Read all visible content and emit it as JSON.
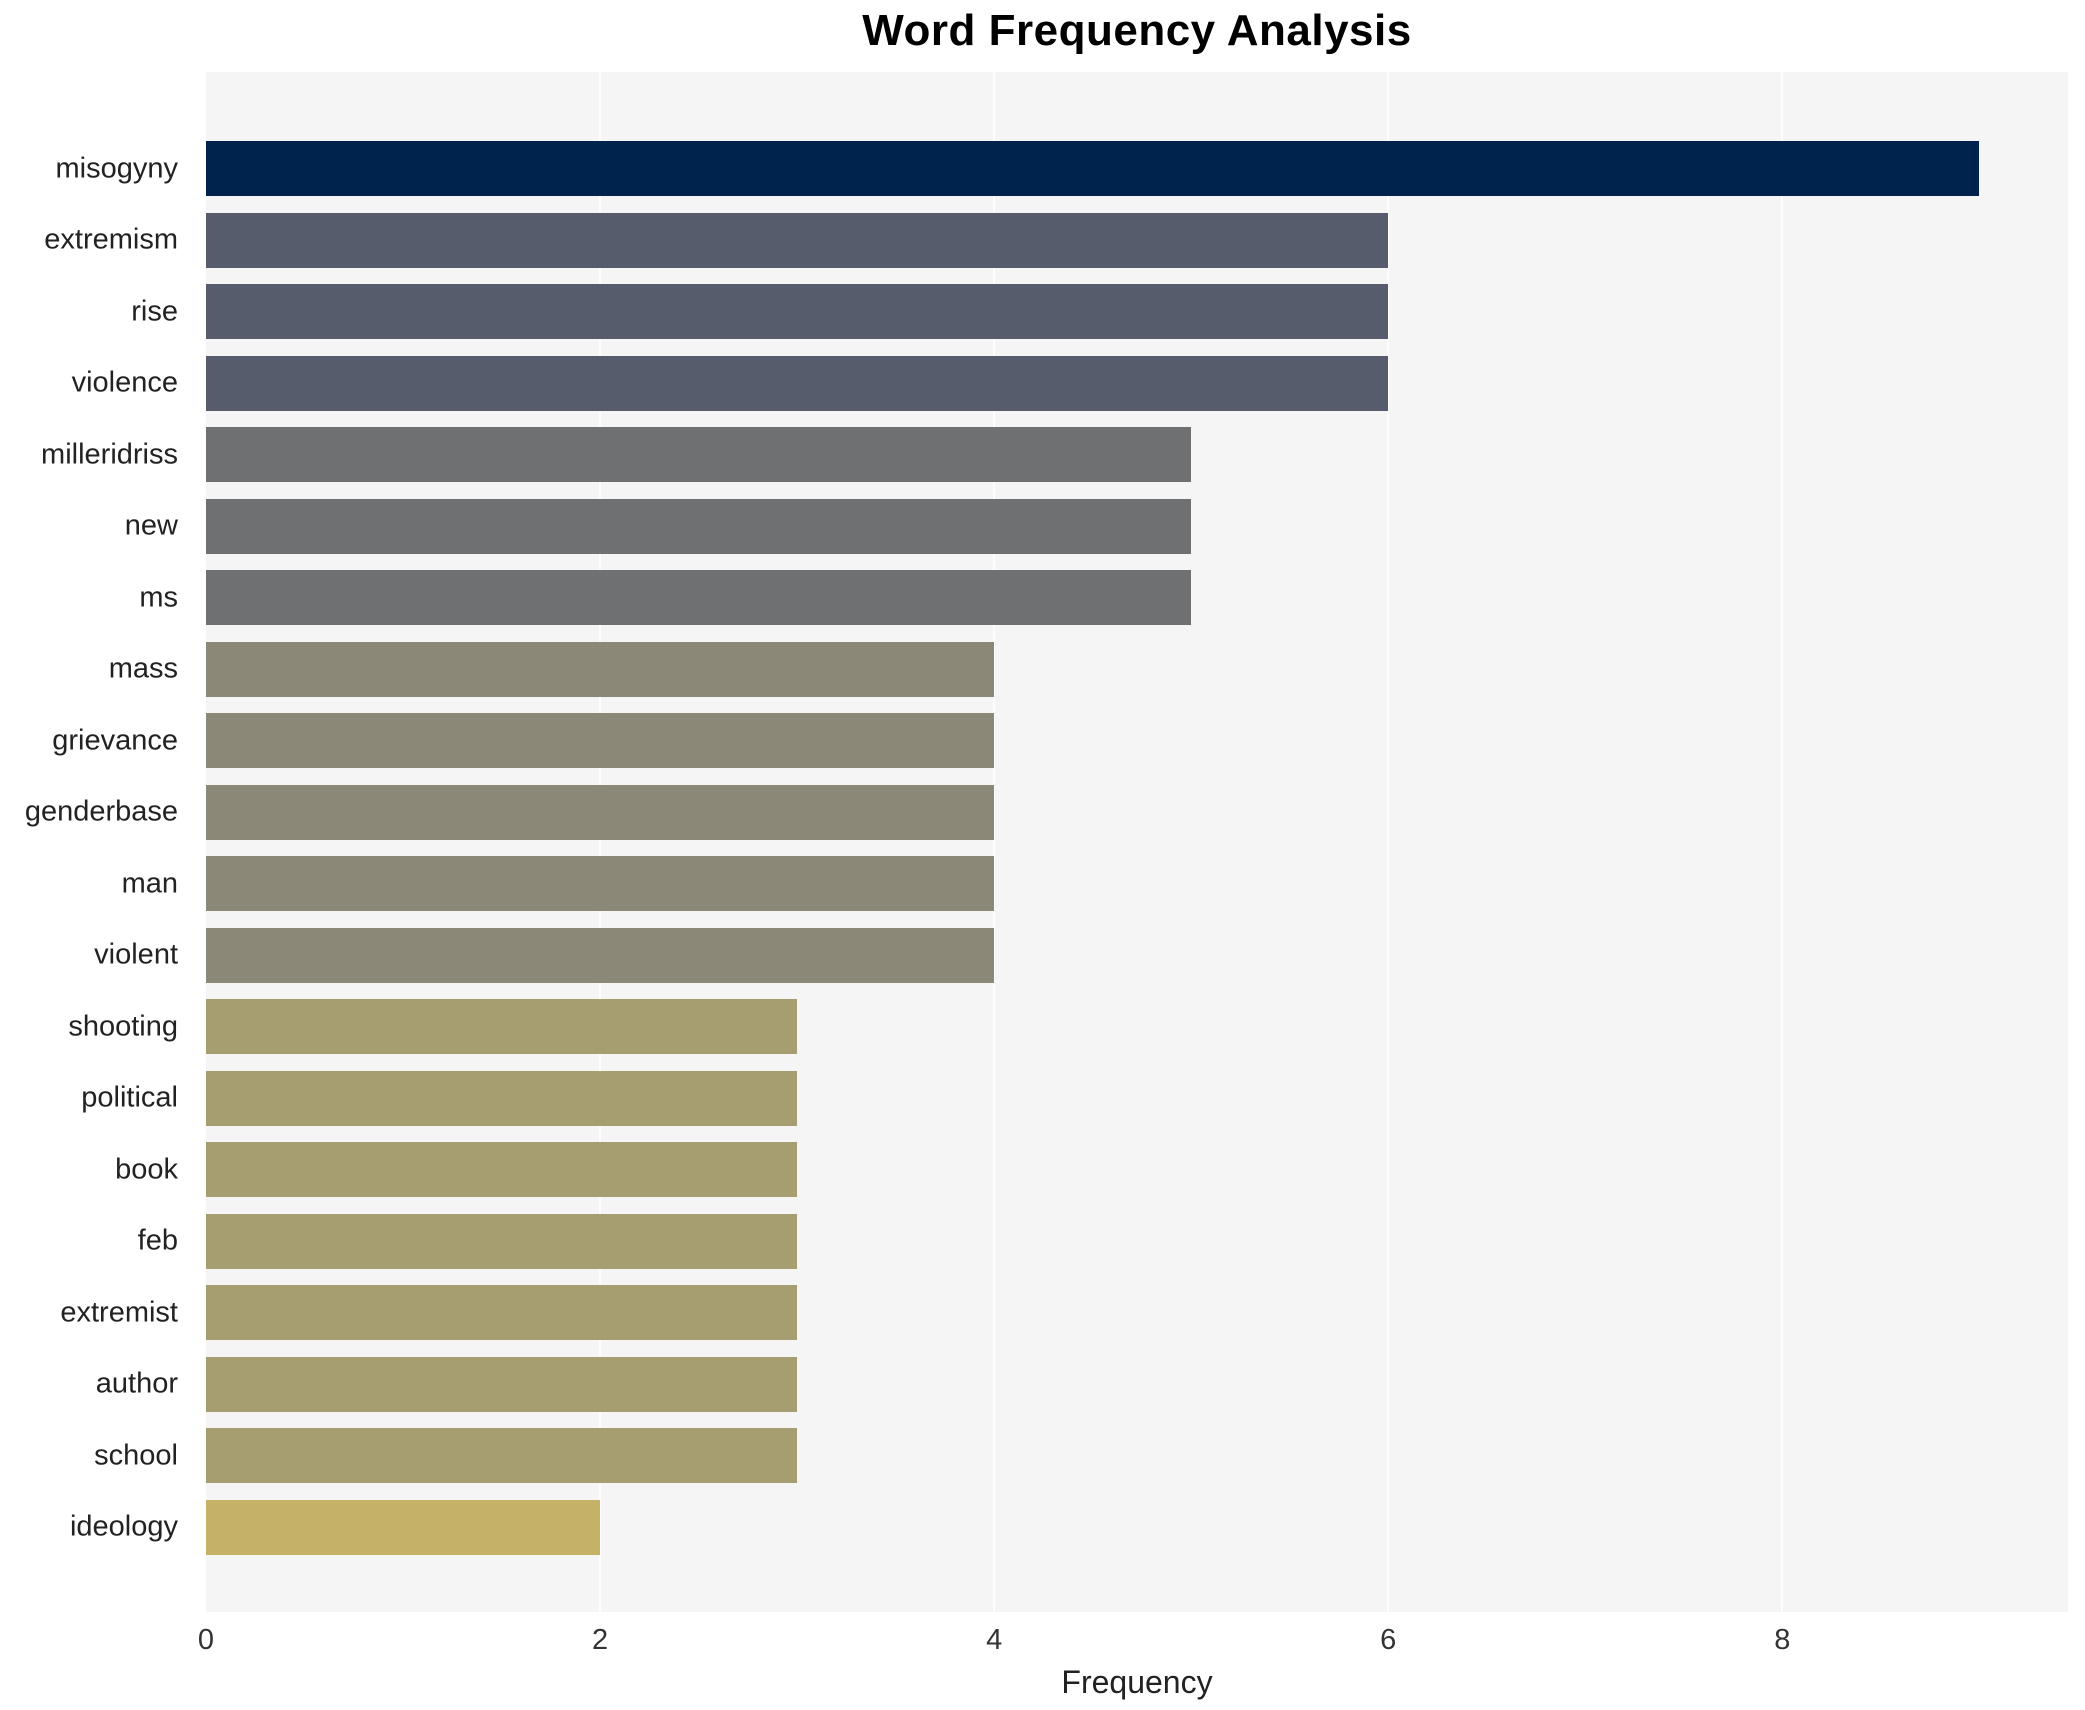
{
  "title": "Word Frequency Analysis",
  "chart_data": {
    "type": "bar",
    "orientation": "horizontal",
    "title": "Word Frequency Analysis",
    "xlabel": "Frequency",
    "ylabel": "",
    "categories": [
      "misogyny",
      "extremism",
      "rise",
      "violence",
      "milleridriss",
      "new",
      "ms",
      "mass",
      "grievance",
      "genderbase",
      "man",
      "violent",
      "shooting",
      "political",
      "book",
      "feb",
      "extremist",
      "author",
      "school",
      "ideology"
    ],
    "values": [
      9,
      6,
      6,
      6,
      5,
      5,
      5,
      4,
      4,
      4,
      4,
      4,
      3,
      3,
      3,
      3,
      3,
      3,
      3,
      2
    ],
    "bar_colors": [
      "#00234e",
      "#575c6d",
      "#575c6d",
      "#575c6d",
      "#6f7072",
      "#6f7072",
      "#6f7072",
      "#8b8878",
      "#8b8878",
      "#8b8878",
      "#8b8878",
      "#8b8878",
      "#a69e71",
      "#a69e71",
      "#a69e71",
      "#a69e71",
      "#a69e71",
      "#a69e71",
      "#a69e71",
      "#c5b267"
    ],
    "xticks": [
      0,
      2,
      4,
      6,
      8
    ],
    "xlim": [
      0,
      9.45
    ],
    "grid": true,
    "legend": "none",
    "plot_background": "#f5f5f6",
    "grid_color": "#fdfdfd"
  }
}
